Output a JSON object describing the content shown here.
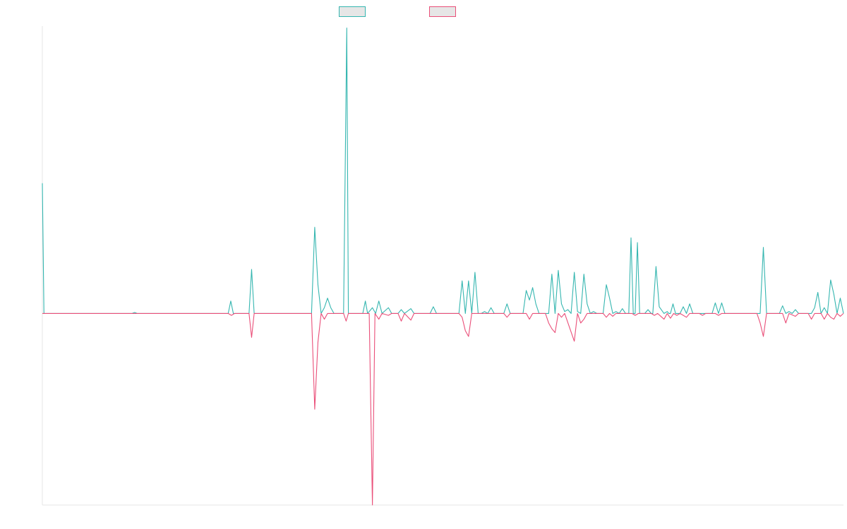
{
  "legend": {
    "series_1_label": "",
    "series_2_label": ""
  },
  "colors": {
    "series_1": "#35b6b0",
    "series_2": "#ea4f79",
    "axis": "#e6e6e6"
  },
  "chart_data": {
    "type": "line",
    "title": "",
    "xlabel": "",
    "ylabel": "",
    "grid": false,
    "legend_position": "top-center",
    "x_range": [
      0,
      250
    ],
    "ylim": [
      -100,
      150
    ],
    "series": [
      {
        "name": "",
        "points": [
          [
            0,
            68
          ],
          [
            0.5,
            0
          ],
          [
            28,
            0
          ],
          [
            28.8,
            0.5
          ],
          [
            29.6,
            0
          ],
          [
            58,
            0
          ],
          [
            58.8,
            6.5
          ],
          [
            59.6,
            0
          ],
          [
            64.5,
            0
          ],
          [
            65.3,
            23
          ],
          [
            66.1,
            0
          ],
          [
            84,
            0
          ],
          [
            85,
            45
          ],
          [
            86,
            15
          ],
          [
            87,
            0
          ],
          [
            88,
            3
          ],
          [
            89,
            8
          ],
          [
            90,
            3
          ],
          [
            91,
            0
          ],
          [
            94,
            0
          ],
          [
            95,
            149
          ],
          [
            95.5,
            0
          ],
          [
            100,
            0
          ],
          [
            100.8,
            6.5
          ],
          [
            101.5,
            0
          ],
          [
            103,
            3
          ],
          [
            104,
            0
          ],
          [
            105,
            6.5
          ],
          [
            106,
            0
          ],
          [
            108,
            3
          ],
          [
            109,
            0
          ],
          [
            111,
            0
          ],
          [
            112,
            2
          ],
          [
            113,
            0
          ],
          [
            115,
            2.5
          ],
          [
            116,
            0
          ],
          [
            121,
            0
          ],
          [
            122,
            3.5
          ],
          [
            123,
            0
          ],
          [
            130,
            0
          ],
          [
            131,
            17
          ],
          [
            132,
            0
          ],
          [
            133,
            17
          ],
          [
            134,
            0
          ],
          [
            135,
            21.5
          ],
          [
            136,
            0
          ],
          [
            137,
            0
          ],
          [
            138,
            1
          ],
          [
            139,
            0
          ],
          [
            140,
            3
          ],
          [
            141,
            0
          ],
          [
            144,
            0
          ],
          [
            145,
            5
          ],
          [
            146,
            0
          ],
          [
            150,
            0
          ],
          [
            151,
            12
          ],
          [
            152,
            7
          ],
          [
            153,
            13.5
          ],
          [
            154,
            5
          ],
          [
            155,
            0
          ],
          [
            158,
            0
          ],
          [
            159,
            20.5
          ],
          [
            160,
            0
          ],
          [
            161,
            22.5
          ],
          [
            162,
            5
          ],
          [
            163,
            1
          ],
          [
            164,
            2
          ],
          [
            165,
            0
          ],
          [
            166,
            21.5
          ],
          [
            167,
            1
          ],
          [
            168,
            0
          ],
          [
            169,
            20.5
          ],
          [
            170,
            5
          ],
          [
            171,
            0
          ],
          [
            172,
            1
          ],
          [
            173,
            0
          ],
          [
            175,
            0
          ],
          [
            176,
            15
          ],
          [
            177,
            8
          ],
          [
            178,
            0
          ],
          [
            179,
            1
          ],
          [
            180,
            0
          ],
          [
            181,
            2.5
          ],
          [
            182,
            0
          ],
          [
            183,
            0
          ],
          [
            183.7,
            39.5
          ],
          [
            184.4,
            0
          ],
          [
            185,
            0
          ],
          [
            185.7,
            37
          ],
          [
            186.4,
            0
          ],
          [
            188,
            0
          ],
          [
            189,
            2
          ],
          [
            190,
            0
          ],
          [
            190.5,
            0
          ],
          [
            191.5,
            24.5
          ],
          [
            192.5,
            3.5
          ],
          [
            194,
            0
          ],
          [
            195,
            1
          ],
          [
            195.5,
            0
          ],
          [
            196,
            0
          ],
          [
            196.8,
            5
          ],
          [
            197.6,
            0
          ],
          [
            199,
            0
          ],
          [
            200,
            3.5
          ],
          [
            201,
            0
          ],
          [
            202,
            5
          ],
          [
            203,
            0
          ],
          [
            209,
            0
          ],
          [
            210,
            5.5
          ],
          [
            211,
            0
          ],
          [
            212,
            5.5
          ],
          [
            213,
            0
          ],
          [
            224,
            0
          ],
          [
            225,
            34.5
          ],
          [
            226,
            0
          ],
          [
            230,
            0
          ],
          [
            231,
            4
          ],
          [
            232,
            0
          ],
          [
            233,
            1
          ],
          [
            234,
            0
          ],
          [
            235,
            2
          ],
          [
            236,
            0
          ],
          [
            240,
            0
          ],
          [
            241,
            3
          ],
          [
            242,
            11
          ],
          [
            243,
            0
          ],
          [
            244,
            3
          ],
          [
            245,
            0
          ],
          [
            246,
            17.5
          ],
          [
            247,
            10
          ],
          [
            248,
            0
          ],
          [
            249,
            8
          ],
          [
            250,
            0
          ]
        ]
      },
      {
        "name": "",
        "points": [
          [
            0,
            0
          ],
          [
            58,
            0
          ],
          [
            59,
            -1
          ],
          [
            60,
            0
          ],
          [
            64.5,
            0
          ],
          [
            65.3,
            -12.5
          ],
          [
            66.1,
            0
          ],
          [
            84,
            0
          ],
          [
            85,
            -50
          ],
          [
            86,
            -15
          ],
          [
            87,
            0
          ],
          [
            88,
            -3
          ],
          [
            89,
            0
          ],
          [
            94,
            0
          ],
          [
            94.8,
            -4
          ],
          [
            95.5,
            0
          ],
          [
            102,
            0
          ],
          [
            103,
            -100
          ],
          [
            103.8,
            0
          ],
          [
            105,
            -3
          ],
          [
            106,
            0
          ],
          [
            108,
            -1
          ],
          [
            109,
            0
          ],
          [
            111,
            0
          ],
          [
            112,
            -4
          ],
          [
            113,
            0
          ],
          [
            115,
            -3.5
          ],
          [
            116,
            0
          ],
          [
            130,
            0
          ],
          [
            131,
            -2
          ],
          [
            132,
            -9
          ],
          [
            133,
            -12
          ],
          [
            134,
            0
          ],
          [
            144,
            0
          ],
          [
            145,
            -2
          ],
          [
            146,
            0
          ],
          [
            151,
            0
          ],
          [
            152,
            -3
          ],
          [
            153,
            0
          ],
          [
            157,
            0
          ],
          [
            158,
            -5
          ],
          [
            159,
            -8
          ],
          [
            160,
            -10
          ],
          [
            161,
            0
          ],
          [
            162,
            -2
          ],
          [
            163,
            0
          ],
          [
            166,
            -14.5
          ],
          [
            167,
            0
          ],
          [
            168,
            -5
          ],
          [
            169,
            -3
          ],
          [
            170,
            0
          ],
          [
            175,
            0
          ],
          [
            176,
            -2
          ],
          [
            177,
            0
          ],
          [
            178,
            -1.5
          ],
          [
            179,
            0
          ],
          [
            184,
            0
          ],
          [
            185,
            -1
          ],
          [
            186,
            0
          ],
          [
            190,
            0
          ],
          [
            191,
            -1
          ],
          [
            192,
            0
          ],
          [
            194,
            -3
          ],
          [
            195,
            0
          ],
          [
            196,
            -2.5
          ],
          [
            197,
            0
          ],
          [
            198,
            -1
          ],
          [
            199,
            0
          ],
          [
            201,
            -2
          ],
          [
            202,
            0
          ],
          [
            205,
            0
          ],
          [
            206,
            -1
          ],
          [
            207,
            0
          ],
          [
            210,
            0
          ],
          [
            211,
            -1
          ],
          [
            212,
            0
          ],
          [
            223,
            0
          ],
          [
            224,
            -5
          ],
          [
            225,
            -12
          ],
          [
            226,
            0
          ],
          [
            231,
            0
          ],
          [
            232,
            -5
          ],
          [
            233,
            0
          ],
          [
            235,
            -1.5
          ],
          [
            236,
            0
          ],
          [
            239,
            0
          ],
          [
            240,
            -3
          ],
          [
            241,
            0
          ],
          [
            243,
            0
          ],
          [
            244,
            -3
          ],
          [
            245,
            0
          ],
          [
            246,
            -2
          ],
          [
            247,
            -3
          ],
          [
            248,
            0
          ],
          [
            249,
            -1.5
          ],
          [
            250,
            0
          ]
        ]
      }
    ]
  }
}
